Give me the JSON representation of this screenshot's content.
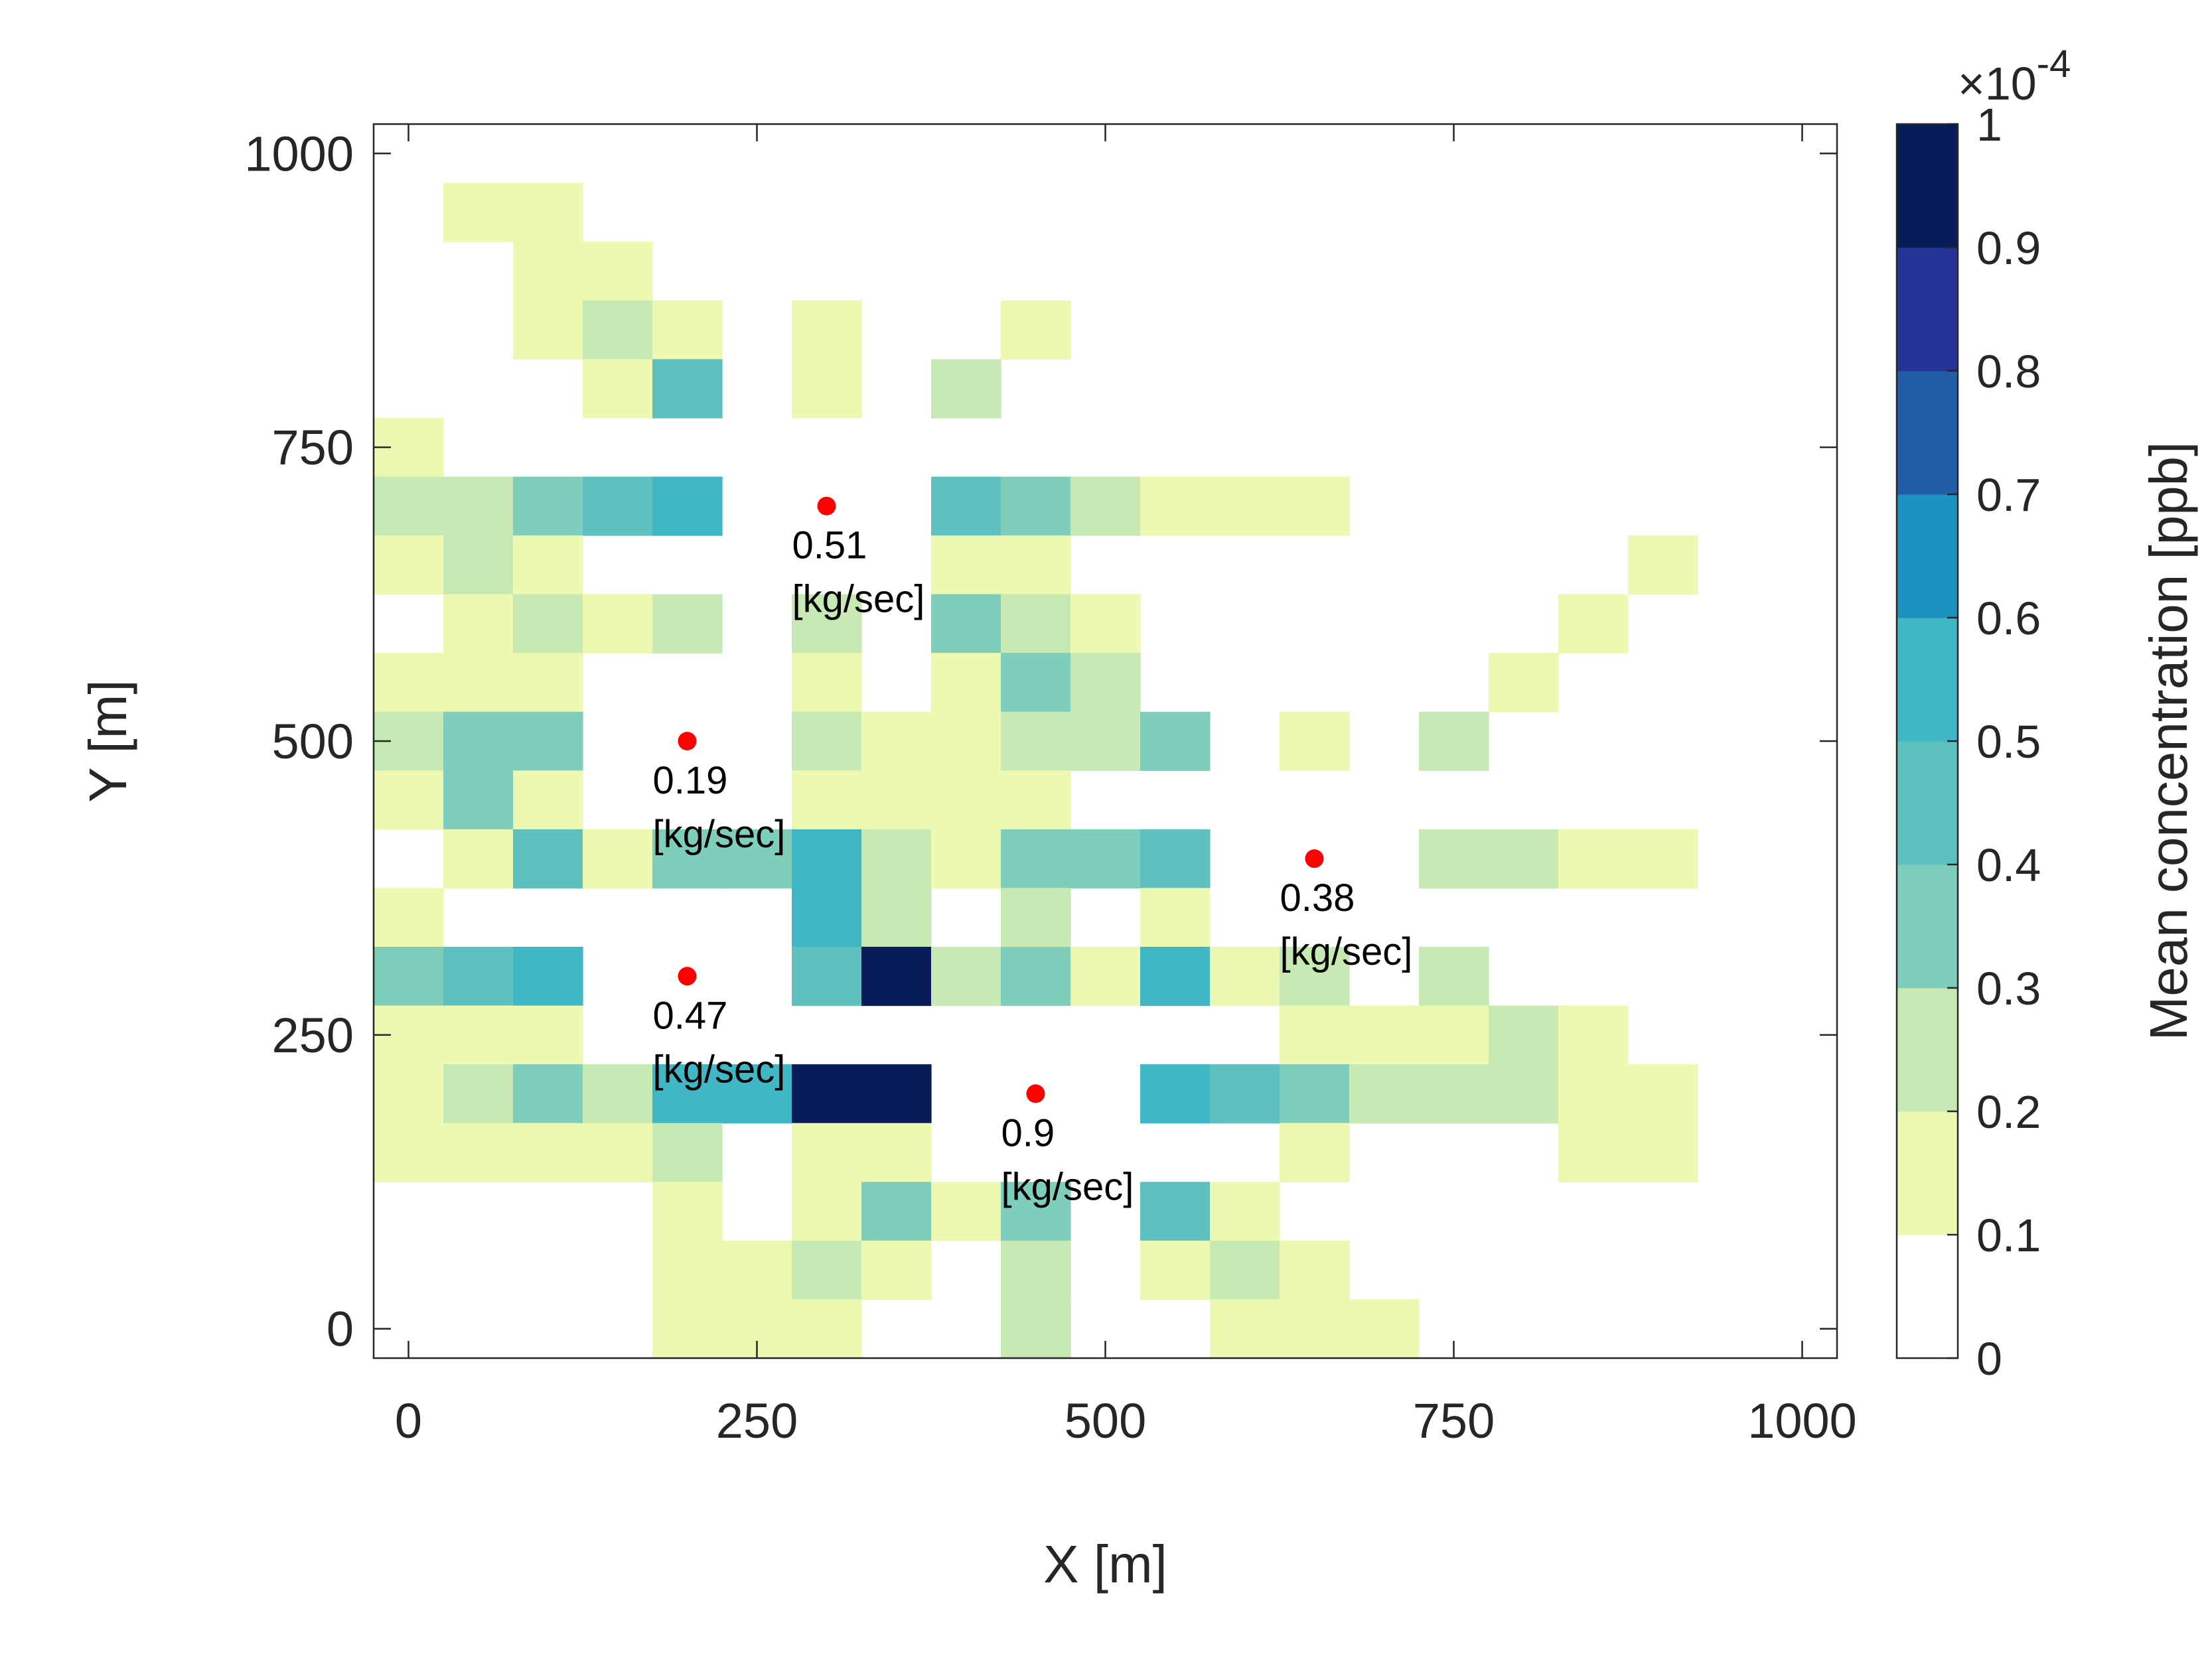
{
  "chart_data": {
    "type": "heatmap",
    "xlabel": "X [m]",
    "ylabel": "Y [m]",
    "xlim": [
      -25,
      1025
    ],
    "ylim": [
      -25,
      1025
    ],
    "xticks": [
      0,
      250,
      500,
      750,
      1000
    ],
    "yticks": [
      0,
      250,
      500,
      750,
      1000
    ],
    "xtick_labels": [
      "0",
      "250",
      "500",
      "750",
      "1000"
    ],
    "ytick_labels": [
      "0",
      "250",
      "500",
      "750",
      "1000"
    ],
    "cell_size": 50,
    "value_unit_exponent": "-4",
    "colorbar": {
      "label": "Mean concentration [ppb]",
      "multiplier_label": "×10",
      "exponent_label": "-4",
      "limits": [
        0,
        1
      ],
      "ticks": [
        0,
        0.1,
        0.2,
        0.3,
        0.4,
        0.5,
        0.6,
        0.7,
        0.8,
        0.9,
        1
      ],
      "tick_labels": [
        "0",
        "0.1",
        "0.2",
        "0.3",
        "0.4",
        "0.5",
        "0.6",
        "0.7",
        "0.8",
        "0.9",
        "1"
      ],
      "colors": [
        "#ffffff",
        "#edf8b1",
        "#c7e9b4",
        "#7fcdbb",
        "#5fc0c0",
        "#41b6c4",
        "#1d91c0",
        "#225ea8",
        "#253494",
        "#081d58"
      ]
    },
    "cells": [
      {
        "x": 0,
        "y": 750,
        "v": 0.15
      },
      {
        "x": 50,
        "y": 950,
        "v": 0.15
      },
      {
        "x": 100,
        "y": 950,
        "v": 0.15
      },
      {
        "x": 100,
        "y": 900,
        "v": 0.15
      },
      {
        "x": 150,
        "y": 900,
        "v": 0.15
      },
      {
        "x": 100,
        "y": 850,
        "v": 0.15
      },
      {
        "x": 150,
        "y": 850,
        "v": 0.25
      },
      {
        "x": 200,
        "y": 850,
        "v": 0.15
      },
      {
        "x": 300,
        "y": 850,
        "v": 0.15
      },
      {
        "x": 450,
        "y": 850,
        "v": 0.15
      },
      {
        "x": 150,
        "y": 800,
        "v": 0.15
      },
      {
        "x": 200,
        "y": 800,
        "v": 0.45
      },
      {
        "x": 300,
        "y": 800,
        "v": 0.15
      },
      {
        "x": 400,
        "y": 800,
        "v": 0.25
      },
      {
        "x": 0,
        "y": 700,
        "v": 0.25
      },
      {
        "x": 50,
        "y": 700,
        "v": 0.25
      },
      {
        "x": 100,
        "y": 700,
        "v": 0.35
      },
      {
        "x": 150,
        "y": 700,
        "v": 0.45
      },
      {
        "x": 200,
        "y": 700,
        "v": 0.55
      },
      {
        "x": 400,
        "y": 700,
        "v": 0.45
      },
      {
        "x": 450,
        "y": 700,
        "v": 0.35
      },
      {
        "x": 500,
        "y": 700,
        "v": 0.25
      },
      {
        "x": 550,
        "y": 700,
        "v": 0.15
      },
      {
        "x": 600,
        "y": 700,
        "v": 0.15
      },
      {
        "x": 650,
        "y": 700,
        "v": 0.15
      },
      {
        "x": 0,
        "y": 650,
        "v": 0.15
      },
      {
        "x": 50,
        "y": 650,
        "v": 0.25
      },
      {
        "x": 100,
        "y": 650,
        "v": 0.15
      },
      {
        "x": 400,
        "y": 650,
        "v": 0.15
      },
      {
        "x": 450,
        "y": 650,
        "v": 0.15
      },
      {
        "x": 900,
        "y": 650,
        "v": 0.15
      },
      {
        "x": 50,
        "y": 600,
        "v": 0.15
      },
      {
        "x": 100,
        "y": 600,
        "v": 0.25
      },
      {
        "x": 150,
        "y": 600,
        "v": 0.15
      },
      {
        "x": 200,
        "y": 600,
        "v": 0.25
      },
      {
        "x": 300,
        "y": 600,
        "v": 0.25
      },
      {
        "x": 400,
        "y": 600,
        "v": 0.35
      },
      {
        "x": 450,
        "y": 600,
        "v": 0.25
      },
      {
        "x": 500,
        "y": 600,
        "v": 0.15
      },
      {
        "x": 850,
        "y": 600,
        "v": 0.15
      },
      {
        "x": 0,
        "y": 550,
        "v": 0.15
      },
      {
        "x": 50,
        "y": 550,
        "v": 0.15
      },
      {
        "x": 100,
        "y": 550,
        "v": 0.15
      },
      {
        "x": 300,
        "y": 550,
        "v": 0.15
      },
      {
        "x": 400,
        "y": 550,
        "v": 0.15
      },
      {
        "x": 450,
        "y": 550,
        "v": 0.35
      },
      {
        "x": 500,
        "y": 550,
        "v": 0.25
      },
      {
        "x": 800,
        "y": 550,
        "v": 0.15
      },
      {
        "x": 0,
        "y": 500,
        "v": 0.25
      },
      {
        "x": 50,
        "y": 500,
        "v": 0.35
      },
      {
        "x": 100,
        "y": 500,
        "v": 0.35
      },
      {
        "x": 300,
        "y": 500,
        "v": 0.25
      },
      {
        "x": 350,
        "y": 500,
        "v": 0.15
      },
      {
        "x": 400,
        "y": 500,
        "v": 0.15
      },
      {
        "x": 450,
        "y": 500,
        "v": 0.25
      },
      {
        "x": 500,
        "y": 500,
        "v": 0.25
      },
      {
        "x": 550,
        "y": 500,
        "v": 0.35
      },
      {
        "x": 650,
        "y": 500,
        "v": 0.15
      },
      {
        "x": 750,
        "y": 500,
        "v": 0.25
      },
      {
        "x": 0,
        "y": 450,
        "v": 0.15
      },
      {
        "x": 50,
        "y": 450,
        "v": 0.35
      },
      {
        "x": 100,
        "y": 450,
        "v": 0.15
      },
      {
        "x": 300,
        "y": 450,
        "v": 0.15
      },
      {
        "x": 350,
        "y": 450,
        "v": 0.15
      },
      {
        "x": 400,
        "y": 450,
        "v": 0.15
      },
      {
        "x": 450,
        "y": 450,
        "v": 0.15
      },
      {
        "x": 50,
        "y": 400,
        "v": 0.15
      },
      {
        "x": 100,
        "y": 400,
        "v": 0.45
      },
      {
        "x": 150,
        "y": 400,
        "v": 0.15
      },
      {
        "x": 200,
        "y": 400,
        "v": 0.35
      },
      {
        "x": 250,
        "y": 400,
        "v": 0.35
      },
      {
        "x": 300,
        "y": 400,
        "v": 0.55
      },
      {
        "x": 350,
        "y": 400,
        "v": 0.25
      },
      {
        "x": 400,
        "y": 400,
        "v": 0.15
      },
      {
        "x": 450,
        "y": 400,
        "v": 0.35
      },
      {
        "x": 500,
        "y": 400,
        "v": 0.35
      },
      {
        "x": 550,
        "y": 400,
        "v": 0.45
      },
      {
        "x": 750,
        "y": 400,
        "v": 0.25
      },
      {
        "x": 800,
        "y": 400,
        "v": 0.25
      },
      {
        "x": 850,
        "y": 400,
        "v": 0.15
      },
      {
        "x": 900,
        "y": 400,
        "v": 0.15
      },
      {
        "x": 0,
        "y": 350,
        "v": 0.15
      },
      {
        "x": 300,
        "y": 350,
        "v": 0.55
      },
      {
        "x": 350,
        "y": 350,
        "v": 0.25
      },
      {
        "x": 450,
        "y": 350,
        "v": 0.25
      },
      {
        "x": 550,
        "y": 350,
        "v": 0.15
      },
      {
        "x": 0,
        "y": 300,
        "v": 0.35
      },
      {
        "x": 50,
        "y": 300,
        "v": 0.45
      },
      {
        "x": 100,
        "y": 300,
        "v": 0.55
      },
      {
        "x": 300,
        "y": 300,
        "v": 0.45
      },
      {
        "x": 350,
        "y": 300,
        "v": 0.95
      },
      {
        "x": 400,
        "y": 300,
        "v": 0.25
      },
      {
        "x": 450,
        "y": 300,
        "v": 0.35
      },
      {
        "x": 500,
        "y": 300,
        "v": 0.15
      },
      {
        "x": 550,
        "y": 300,
        "v": 0.55
      },
      {
        "x": 600,
        "y": 300,
        "v": 0.15
      },
      {
        "x": 650,
        "y": 300,
        "v": 0.25
      },
      {
        "x": 750,
        "y": 300,
        "v": 0.25
      },
      {
        "x": 0,
        "y": 250,
        "v": 0.15
      },
      {
        "x": 50,
        "y": 250,
        "v": 0.15
      },
      {
        "x": 100,
        "y": 250,
        "v": 0.15
      },
      {
        "x": 650,
        "y": 250,
        "v": 0.15
      },
      {
        "x": 700,
        "y": 250,
        "v": 0.15
      },
      {
        "x": 750,
        "y": 250,
        "v": 0.15
      },
      {
        "x": 800,
        "y": 250,
        "v": 0.25
      },
      {
        "x": 850,
        "y": 250,
        "v": 0.15
      },
      {
        "x": 0,
        "y": 200,
        "v": 0.15
      },
      {
        "x": 50,
        "y": 200,
        "v": 0.25
      },
      {
        "x": 100,
        "y": 200,
        "v": 0.35
      },
      {
        "x": 150,
        "y": 200,
        "v": 0.25
      },
      {
        "x": 200,
        "y": 200,
        "v": 0.55
      },
      {
        "x": 250,
        "y": 200,
        "v": 0.55
      },
      {
        "x": 300,
        "y": 200,
        "v": 0.95
      },
      {
        "x": 350,
        "y": 200,
        "v": 0.95
      },
      {
        "x": 550,
        "y": 200,
        "v": 0.55
      },
      {
        "x": 600,
        "y": 200,
        "v": 0.45
      },
      {
        "x": 650,
        "y": 200,
        "v": 0.35
      },
      {
        "x": 700,
        "y": 200,
        "v": 0.25
      },
      {
        "x": 750,
        "y": 200,
        "v": 0.25
      },
      {
        "x": 800,
        "y": 200,
        "v": 0.25
      },
      {
        "x": 850,
        "y": 200,
        "v": 0.15
      },
      {
        "x": 900,
        "y": 200,
        "v": 0.15
      },
      {
        "x": 0,
        "y": 150,
        "v": 0.15
      },
      {
        "x": 50,
        "y": 150,
        "v": 0.15
      },
      {
        "x": 100,
        "y": 150,
        "v": 0.15
      },
      {
        "x": 150,
        "y": 150,
        "v": 0.15
      },
      {
        "x": 200,
        "y": 150,
        "v": 0.25
      },
      {
        "x": 300,
        "y": 150,
        "v": 0.15
      },
      {
        "x": 350,
        "y": 150,
        "v": 0.15
      },
      {
        "x": 650,
        "y": 150,
        "v": 0.15
      },
      {
        "x": 850,
        "y": 150,
        "v": 0.15
      },
      {
        "x": 900,
        "y": 150,
        "v": 0.15
      },
      {
        "x": 200,
        "y": 100,
        "v": 0.15
      },
      {
        "x": 300,
        "y": 100,
        "v": 0.15
      },
      {
        "x": 350,
        "y": 100,
        "v": 0.35
      },
      {
        "x": 400,
        "y": 100,
        "v": 0.15
      },
      {
        "x": 450,
        "y": 100,
        "v": 0.35
      },
      {
        "x": 550,
        "y": 100,
        "v": 0.45
      },
      {
        "x": 600,
        "y": 100,
        "v": 0.15
      },
      {
        "x": 200,
        "y": 50,
        "v": 0.15
      },
      {
        "x": 250,
        "y": 50,
        "v": 0.15
      },
      {
        "x": 300,
        "y": 50,
        "v": 0.25
      },
      {
        "x": 350,
        "y": 50,
        "v": 0.15
      },
      {
        "x": 450,
        "y": 50,
        "v": 0.25
      },
      {
        "x": 550,
        "y": 50,
        "v": 0.15
      },
      {
        "x": 600,
        "y": 50,
        "v": 0.25
      },
      {
        "x": 650,
        "y": 50,
        "v": 0.15
      },
      {
        "x": 200,
        "y": 0,
        "v": 0.15
      },
      {
        "x": 250,
        "y": 0,
        "v": 0.15
      },
      {
        "x": 300,
        "y": 0,
        "v": 0.15
      },
      {
        "x": 450,
        "y": 0,
        "v": 0.25
      },
      {
        "x": 600,
        "y": 0,
        "v": 0.15
      },
      {
        "x": 650,
        "y": 0,
        "v": 0.15
      },
      {
        "x": 700,
        "y": 0,
        "v": 0.15
      }
    ],
    "sources": [
      {
        "x": 300,
        "y": 700,
        "rate": "0.51",
        "unit": "[kg/sec]"
      },
      {
        "x": 200,
        "y": 500,
        "rate": "0.19",
        "unit": "[kg/sec]"
      },
      {
        "x": 650,
        "y": 400,
        "rate": "0.38",
        "unit": "[kg/sec]"
      },
      {
        "x": 200,
        "y": 300,
        "rate": "0.47",
        "unit": "[kg/sec]"
      },
      {
        "x": 450,
        "y": 200,
        "rate": "0.9",
        "unit": "[kg/sec]"
      }
    ],
    "source_color": "#ff0000"
  }
}
